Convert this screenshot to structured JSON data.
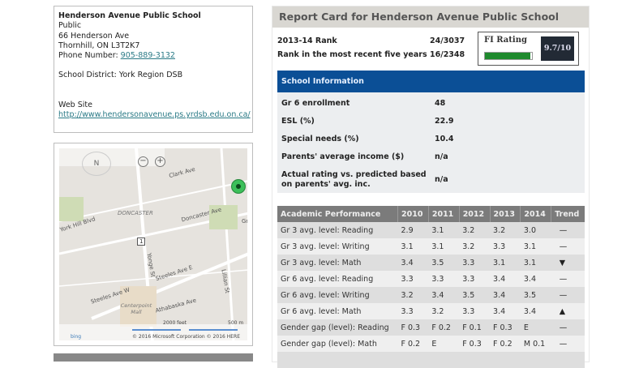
{
  "school": {
    "name": "Henderson Avenue Public School",
    "type": "Public",
    "address1": "66 Henderson Ave",
    "address2": "Thornhill, ON L3T2K7",
    "phone_label": "Phone Number: ",
    "phone": "905-889-3132",
    "district": "School District: York Region DSB",
    "website_label": "Web Site",
    "website": "http://www.hendersonavenue.ps.yrdsb.edu.on.ca/"
  },
  "map": {
    "labels": [
      "Clark Ave",
      "DONCASTER",
      "Doncaster Ave",
      "York Hill Blvd",
      "Yonge St",
      "Steeles Ave E",
      "Steeles Ave W",
      "Centerpoint Mall",
      "Athabaska Ave",
      "Lillian St",
      "Gr",
      "1"
    ],
    "scale_feet": "2000 feet",
    "scale_m": "500 m",
    "copyright": "© 2016 Microsoft Corporation  © 2016 HERE",
    "bing": "bing",
    "compass": "N",
    "pin_color": "#3cc05a"
  },
  "report": {
    "title": "Report Card for Henderson Avenue Public School",
    "rank_label": "2013-14 Rank",
    "rank": "24/3037",
    "rank5_label": "Rank in the most recent five years",
    "rank5": "16/2348",
    "fi_label": "FI Rating",
    "fi_value": "9.7/10",
    "fi_fraction": 0.97,
    "info_title": "School Information",
    "info": [
      {
        "label": "Gr 6 enrollment",
        "value": "48"
      },
      {
        "label": "ESL (%)",
        "value": "22.9"
      },
      {
        "label": "Special needs (%)",
        "value": "10.4"
      },
      {
        "label": "Parents' average income ($)",
        "value": "n/a"
      },
      {
        "label": "Actual rating vs. predicted based on parents' avg. inc.",
        "value": "n/a"
      }
    ],
    "perf_headers": [
      "Academic Performance",
      "2010",
      "2011",
      "2012",
      "2013",
      "2014",
      "Trend"
    ],
    "perf_rows": [
      [
        "Gr 3 avg. level: Reading",
        "2.9",
        "3.1",
        "3.2",
        "3.2",
        "3.0",
        "—"
      ],
      [
        "Gr 3 avg. level: Writing",
        "3.1",
        "3.1",
        "3.2",
        "3.3",
        "3.1",
        "—"
      ],
      [
        "Gr 3 avg. level: Math",
        "3.4",
        "3.5",
        "3.3",
        "3.1",
        "3.1",
        "▼"
      ],
      [
        "Gr 6 avg. level: Reading",
        "3.3",
        "3.3",
        "3.3",
        "3.4",
        "3.4",
        "—"
      ],
      [
        "Gr 6 avg. level: Writing",
        "3.2",
        "3.4",
        "3.5",
        "3.4",
        "3.5",
        "—"
      ],
      [
        "Gr 6 avg. level: Math",
        "3.3",
        "3.2",
        "3.3",
        "3.4",
        "3.4",
        "▲"
      ],
      [
        "Gender gap (level): Reading",
        "F 0.3",
        "F 0.2",
        "F 0.1",
        "F 0.3",
        "E",
        "—"
      ],
      [
        "Gender gap (level): Math",
        "F 0.2",
        "E",
        "F 0.3",
        "F 0.2",
        "M 0.1",
        "—"
      ]
    ]
  }
}
